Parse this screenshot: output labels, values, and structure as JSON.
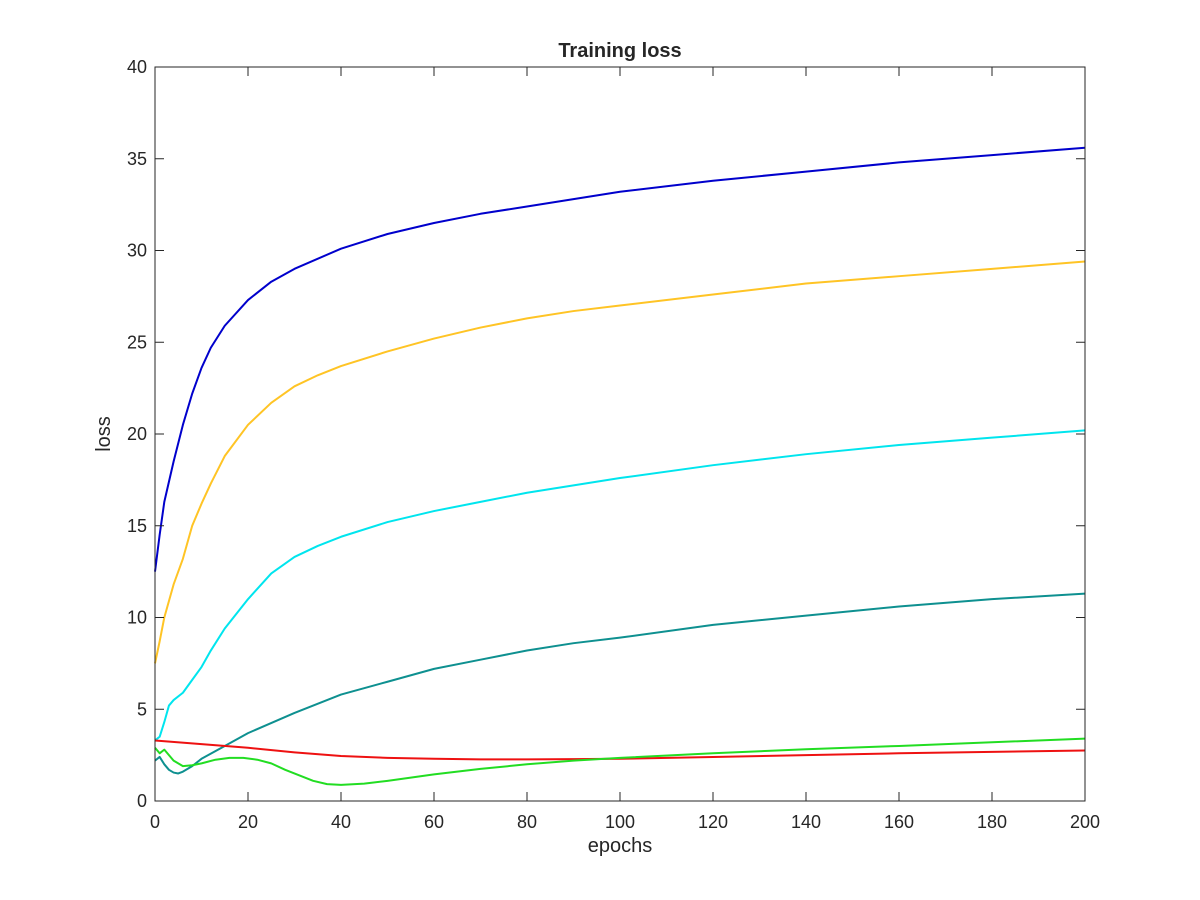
{
  "chart_data": {
    "type": "line",
    "title": "Training loss",
    "xlabel": "epochs",
    "ylabel": "loss",
    "xlim": [
      0,
      200
    ],
    "ylim": [
      0,
      40
    ],
    "xticks": [
      0,
      20,
      40,
      60,
      80,
      100,
      120,
      140,
      160,
      180,
      200
    ],
    "yticks": [
      0,
      5,
      10,
      15,
      20,
      25,
      30,
      35,
      40
    ],
    "grid": false,
    "legend": "none",
    "series": [
      {
        "color": "#0000cc",
        "points": [
          [
            0,
            12.5
          ],
          [
            1,
            14.5
          ],
          [
            2,
            16.3
          ],
          [
            4,
            18.5
          ],
          [
            6,
            20.5
          ],
          [
            8,
            22.2
          ],
          [
            10,
            23.6
          ],
          [
            12,
            24.7
          ],
          [
            15,
            25.9
          ],
          [
            20,
            27.3
          ],
          [
            25,
            28.3
          ],
          [
            30,
            29.0
          ],
          [
            40,
            30.1
          ],
          [
            50,
            30.9
          ],
          [
            60,
            31.5
          ],
          [
            70,
            32.0
          ],
          [
            80,
            32.4
          ],
          [
            90,
            32.8
          ],
          [
            100,
            33.2
          ],
          [
            120,
            33.8
          ],
          [
            140,
            34.3
          ],
          [
            160,
            34.8
          ],
          [
            180,
            35.2
          ],
          [
            200,
            35.6
          ]
        ]
      },
      {
        "color": "#ffc425",
        "points": [
          [
            0,
            7.5
          ],
          [
            1,
            8.7
          ],
          [
            2,
            10.0
          ],
          [
            4,
            11.8
          ],
          [
            6,
            13.2
          ],
          [
            8,
            15.0
          ],
          [
            10,
            16.2
          ],
          [
            12,
            17.3
          ],
          [
            15,
            18.8
          ],
          [
            20,
            20.5
          ],
          [
            25,
            21.7
          ],
          [
            30,
            22.6
          ],
          [
            35,
            23.2
          ],
          [
            40,
            23.7
          ],
          [
            50,
            24.5
          ],
          [
            60,
            25.2
          ],
          [
            70,
            25.8
          ],
          [
            80,
            26.3
          ],
          [
            90,
            26.7
          ],
          [
            100,
            27.0
          ],
          [
            120,
            27.6
          ],
          [
            140,
            28.2
          ],
          [
            160,
            28.6
          ],
          [
            180,
            29.0
          ],
          [
            200,
            29.4
          ]
        ]
      },
      {
        "color": "#00e5ee",
        "points": [
          [
            0,
            3.3
          ],
          [
            1,
            3.5
          ],
          [
            2,
            4.3
          ],
          [
            3,
            5.2
          ],
          [
            4,
            5.5
          ],
          [
            6,
            5.9
          ],
          [
            8,
            6.6
          ],
          [
            10,
            7.3
          ],
          [
            12,
            8.2
          ],
          [
            15,
            9.4
          ],
          [
            20,
            11.0
          ],
          [
            25,
            12.4
          ],
          [
            30,
            13.3
          ],
          [
            35,
            13.9
          ],
          [
            40,
            14.4
          ],
          [
            50,
            15.2
          ],
          [
            60,
            15.8
          ],
          [
            70,
            16.3
          ],
          [
            80,
            16.8
          ],
          [
            90,
            17.2
          ],
          [
            100,
            17.6
          ],
          [
            120,
            18.3
          ],
          [
            140,
            18.9
          ],
          [
            160,
            19.4
          ],
          [
            180,
            19.8
          ],
          [
            200,
            20.2
          ]
        ]
      },
      {
        "color": "#0e9090",
        "points": [
          [
            0,
            2.2
          ],
          [
            1,
            2.4
          ],
          [
            2,
            2.0
          ],
          [
            3,
            1.7
          ],
          [
            4,
            1.55
          ],
          [
            5,
            1.5
          ],
          [
            6,
            1.6
          ],
          [
            8,
            1.9
          ],
          [
            10,
            2.3
          ],
          [
            15,
            3.0
          ],
          [
            20,
            3.7
          ],
          [
            30,
            4.8
          ],
          [
            40,
            5.8
          ],
          [
            50,
            6.5
          ],
          [
            60,
            7.2
          ],
          [
            70,
            7.7
          ],
          [
            80,
            8.2
          ],
          [
            90,
            8.6
          ],
          [
            100,
            8.9
          ],
          [
            120,
            9.6
          ],
          [
            140,
            10.1
          ],
          [
            160,
            10.6
          ],
          [
            180,
            11.0
          ],
          [
            200,
            11.3
          ]
        ]
      },
      {
        "color": "#ee1111",
        "points": [
          [
            0,
            3.3
          ],
          [
            10,
            3.1
          ],
          [
            20,
            2.9
          ],
          [
            30,
            2.65
          ],
          [
            40,
            2.45
          ],
          [
            50,
            2.35
          ],
          [
            60,
            2.3
          ],
          [
            70,
            2.27
          ],
          [
            80,
            2.27
          ],
          [
            90,
            2.28
          ],
          [
            100,
            2.3
          ],
          [
            120,
            2.4
          ],
          [
            140,
            2.5
          ],
          [
            160,
            2.6
          ],
          [
            180,
            2.68
          ],
          [
            200,
            2.75
          ]
        ]
      },
      {
        "color": "#22dd22",
        "points": [
          [
            0,
            2.9
          ],
          [
            1,
            2.6
          ],
          [
            2,
            2.8
          ],
          [
            3,
            2.5
          ],
          [
            4,
            2.2
          ],
          [
            6,
            1.9
          ],
          [
            8,
            1.95
          ],
          [
            10,
            2.05
          ],
          [
            13,
            2.25
          ],
          [
            16,
            2.35
          ],
          [
            19,
            2.35
          ],
          [
            22,
            2.25
          ],
          [
            25,
            2.05
          ],
          [
            28,
            1.7
          ],
          [
            31,
            1.4
          ],
          [
            34,
            1.1
          ],
          [
            37,
            0.92
          ],
          [
            40,
            0.88
          ],
          [
            45,
            0.95
          ],
          [
            50,
            1.1
          ],
          [
            60,
            1.45
          ],
          [
            70,
            1.75
          ],
          [
            80,
            2.0
          ],
          [
            90,
            2.2
          ],
          [
            100,
            2.35
          ],
          [
            120,
            2.6
          ],
          [
            140,
            2.82
          ],
          [
            160,
            3.0
          ],
          [
            180,
            3.2
          ],
          [
            200,
            3.4
          ]
        ]
      }
    ]
  }
}
